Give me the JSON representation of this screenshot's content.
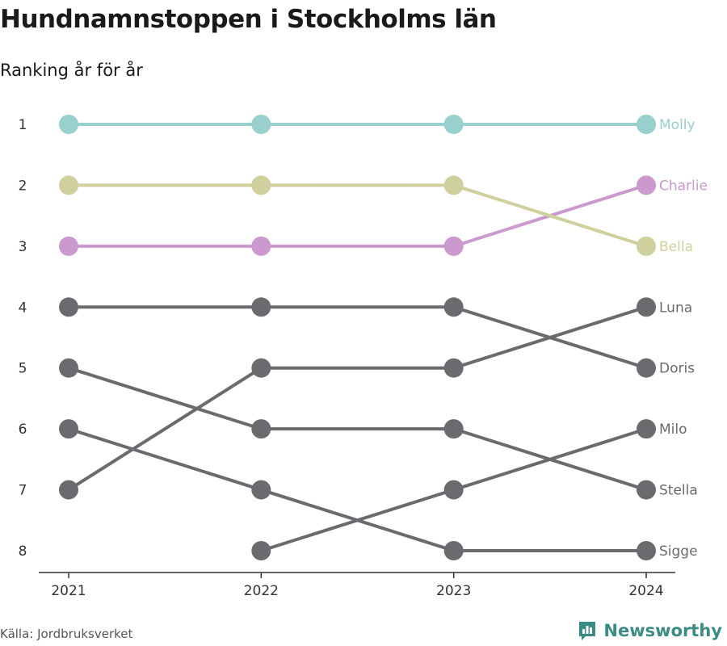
{
  "header": {
    "title": "Hundnamnstoppen i Stockholms län",
    "subtitle": "Ranking år för år"
  },
  "footer": {
    "source": "Källa: Jordbruksverket",
    "brand": "Newsworthy",
    "brand_icon": "bar-chart-icon"
  },
  "colors": {
    "muted": "#6b6a6e",
    "axis": "#333333",
    "brand": "#3a8c87"
  },
  "chart_data": {
    "type": "line",
    "title": "Hundnamnstoppen i Stockholms län",
    "subtitle": "Ranking år för år",
    "x": [
      "2021",
      "2022",
      "2023",
      "2024"
    ],
    "y_ticks": [
      1,
      2,
      3,
      4,
      5,
      6,
      7,
      8
    ],
    "ylim": [
      1,
      8
    ],
    "y_reversed": true,
    "grid": false,
    "legend": "end-labels",
    "series": [
      {
        "name": "Molly",
        "values": [
          1,
          1,
          1,
          1
        ],
        "color": "#99cfcd"
      },
      {
        "name": "Charlie",
        "values": [
          3,
          3,
          3,
          2
        ],
        "color": "#cc99cf"
      },
      {
        "name": "Bella",
        "values": [
          2,
          2,
          2,
          3
        ],
        "color": "#cfd09e"
      },
      {
        "name": "Luna",
        "values": [
          7,
          5,
          5,
          4
        ],
        "color": "#6b6a6e"
      },
      {
        "name": "Doris",
        "values": [
          4,
          4,
          4,
          5
        ],
        "color": "#6b6a6e"
      },
      {
        "name": "Milo",
        "values": [
          null,
          8,
          7,
          6
        ],
        "color": "#6b6a6e"
      },
      {
        "name": "Stella",
        "values": [
          5,
          6,
          6,
          7
        ],
        "color": "#6b6a6e"
      },
      {
        "name": "Sigge",
        "values": [
          6,
          7,
          8,
          8
        ],
        "color": "#6b6a6e"
      }
    ]
  }
}
